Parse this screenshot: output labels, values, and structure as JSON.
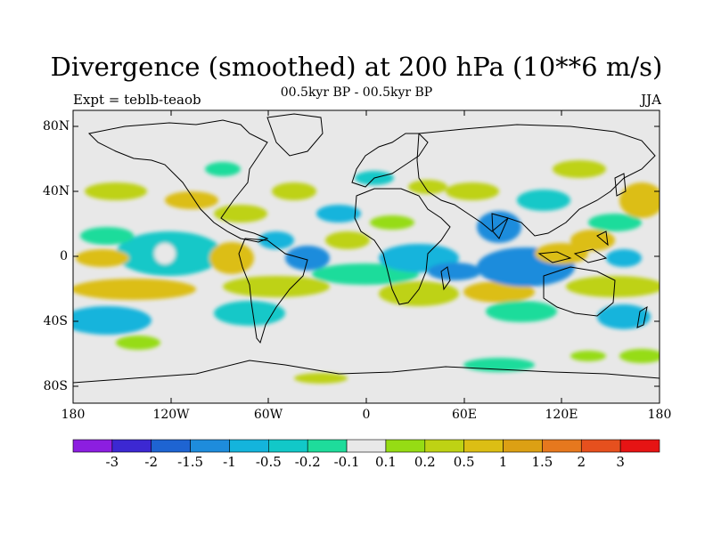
{
  "title": "Divergence (smoothed) at 200 hPa (10**6 m/s)",
  "subtitle": "00.5kyr BP - 00.5kyr BP",
  "left_label": "Expt = teblb-teaob",
  "right_label": "JJA",
  "lat_ticks": [
    "80N",
    "40N",
    "0",
    "40S",
    "80S"
  ],
  "lon_ticks": [
    "180",
    "120W",
    "60W",
    "0",
    "60E",
    "120E",
    "180"
  ],
  "colorbar": {
    "colors": [
      "#8c1ee0",
      "#3c28d2",
      "#1e64d2",
      "#1e8cdc",
      "#14b4dc",
      "#12c8c8",
      "#1edc9b",
      "#e8e8e8",
      "#96dc14",
      "#bed214",
      "#dcbe14",
      "#dca014",
      "#e6781e",
      "#e6501e",
      "#e61414"
    ],
    "labels": [
      "-3",
      "-2",
      "-1.5",
      "-1",
      "-0.5",
      "-0.2",
      "-0.1",
      "0.1",
      "0.2",
      "0.5",
      "1",
      "1.5",
      "2",
      "3"
    ]
  },
  "map": {
    "background_color": "#e8e8e8",
    "land_color": "none",
    "coast_color": "#000000"
  }
}
